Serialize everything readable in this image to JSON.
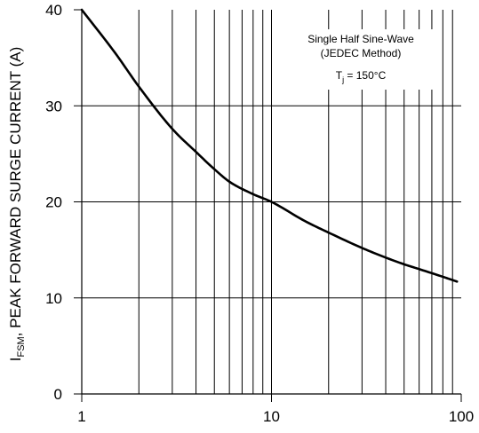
{
  "chart_data": {
    "type": "line",
    "x_scale": "log",
    "xlim": [
      1,
      100
    ],
    "ylim": [
      0,
      40
    ],
    "grid": true,
    "x_ticks": [
      1,
      10,
      100
    ],
    "x_tick_labels": [
      "1",
      "10",
      "100"
    ],
    "y_ticks": [
      0,
      10,
      20,
      30,
      40
    ],
    "y_tick_labels": [
      "0",
      "10",
      "20",
      "30",
      "40"
    ],
    "ylabel": {
      "base": "I",
      "sub": "FSM",
      "rest": ", PEAK FORWARD SURGE CURRENT (A)"
    },
    "xlabel": "",
    "annotation": {
      "line1": "Single Half Sine-Wave",
      "line2": "(JEDEC Method)",
      "line3_base": "T",
      "line3_sub": "j",
      "line3_rest": " = 150°C"
    },
    "series": [
      {
        "x": [
          1,
          1.5,
          2,
          3,
          4,
          5,
          6,
          8,
          10,
          15,
          20,
          30,
          40,
          50,
          60,
          80,
          95
        ],
        "y": [
          40,
          35.5,
          32,
          27.6,
          25.2,
          23.4,
          22.1,
          20.8,
          20,
          18,
          16.8,
          15.2,
          14.2,
          13.5,
          13,
          12.2,
          11.7
        ]
      }
    ]
  }
}
